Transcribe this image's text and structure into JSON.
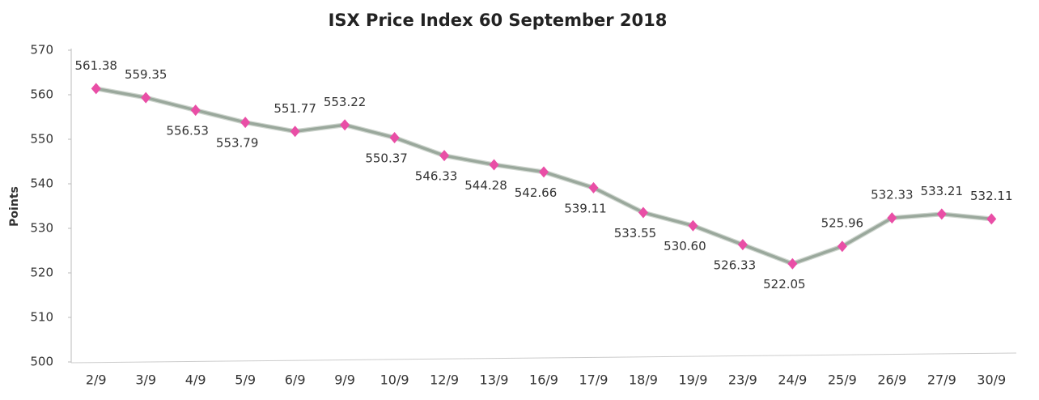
{
  "chart_data": {
    "type": "line",
    "title": "ISX Price Index 60 September   2018",
    "y_label": "Points",
    "categories": [
      "2/9",
      "3/9",
      "4/9",
      "5/9",
      "6/9",
      "9/9",
      "10/9",
      "12/9",
      "13/9",
      "16/9",
      "17/9",
      "18/9",
      "19/9",
      "23/9",
      "24/9",
      "25/9",
      "26/9",
      "27/9",
      "30/9"
    ],
    "series": [
      {
        "name": "ISX Price Index 60",
        "color": "#9aa89c",
        "marker_color": "#e94ea6",
        "values": [
          561.38,
          559.35,
          556.53,
          553.79,
          551.77,
          553.22,
          550.37,
          546.33,
          544.28,
          542.66,
          539.11,
          533.55,
          530.6,
          526.33,
          522.05,
          525.96,
          532.33,
          533.21,
          532.11
        ],
        "value_labels": [
          "561.38",
          "559.35",
          "556.53",
          "553.79",
          "551.77",
          "553.22",
          "550.37",
          "546.33",
          "544.28",
          "542.66",
          "539.11",
          "533.55",
          "530.60",
          "526.33",
          "522.05",
          "525.96",
          "532.33",
          "533.21",
          "532.11"
        ]
      }
    ],
    "ylim": [
      500,
      570
    ],
    "yticks": [
      500,
      510,
      520,
      530,
      540,
      550,
      560,
      570
    ],
    "grid": false
  }
}
